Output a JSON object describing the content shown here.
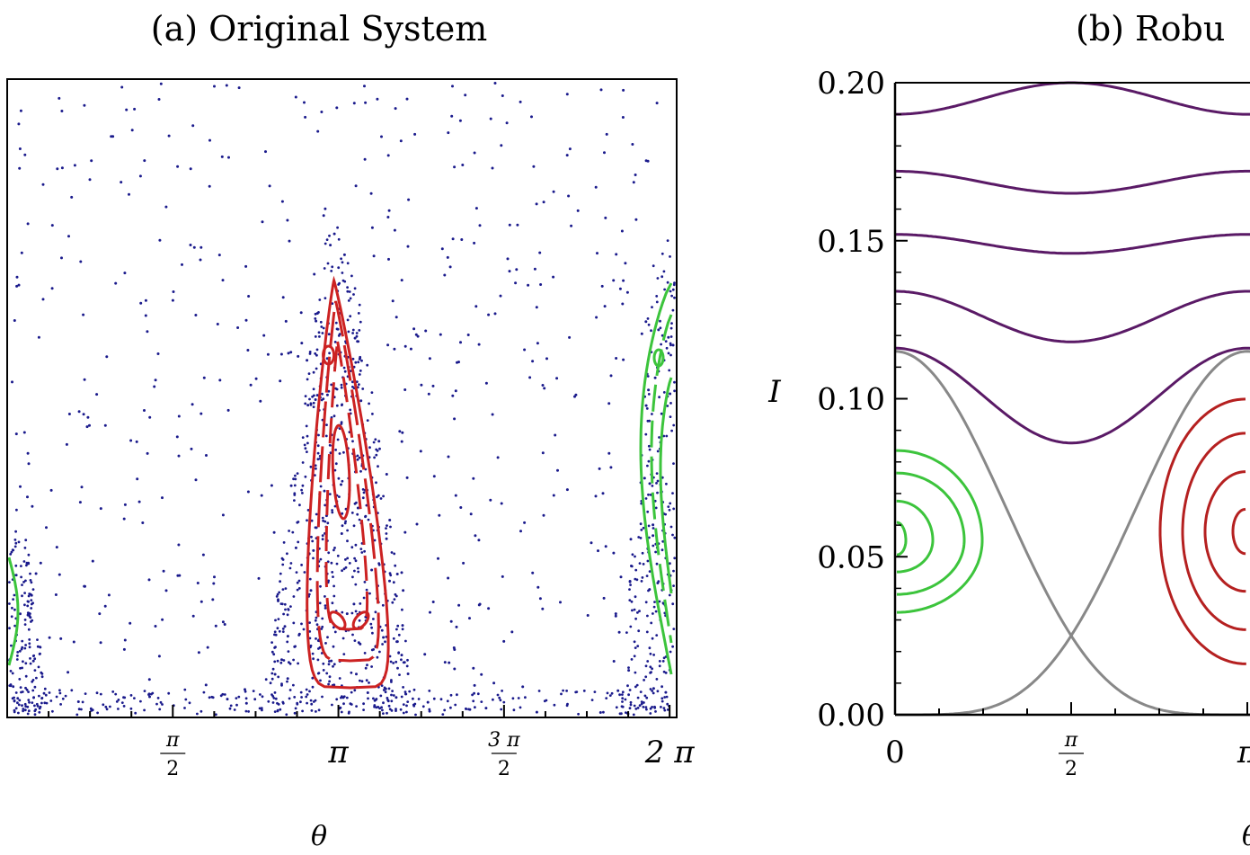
{
  "chart_data": [
    {
      "type": "scatter",
      "panel_title": "(a) Original System",
      "xlabel": "θ",
      "ylabel": "",
      "xlim": [
        0.0,
        6.35
      ],
      "ylim": [
        0.0,
        0.2
      ],
      "x_ticks": [
        {
          "value": 1.5708,
          "num": "π",
          "den": "2"
        },
        {
          "value": 3.1416,
          "label": "π"
        },
        {
          "value": 4.7124,
          "num": "3 π",
          "den": "2"
        },
        {
          "value": 6.2832,
          "label": "2 π"
        }
      ],
      "y_ticks": [],
      "grid": false,
      "colors": {
        "chaos": "#1a1a8c",
        "red_island": "#cc2222",
        "green_island": "#3cc43c"
      },
      "series": [
        {
          "role": "chaotic sea",
          "style": "dots"
        },
        {
          "role": "island at π",
          "style": "closed curves",
          "center": [
            3.14,
            0.08
          ]
        },
        {
          "role": "island at 0 / 2π",
          "style": "closed curves",
          "center": [
            6.28,
            0.08
          ]
        }
      ]
    },
    {
      "type": "line",
      "panel_title": "(b) Robu",
      "xlabel": "θ",
      "ylabel": "I",
      "xlim": [
        0.0,
        3.2
      ],
      "ylim": [
        0.0,
        0.2
      ],
      "x_ticks": [
        {
          "value": 0,
          "label": "0"
        },
        {
          "value": 1.5708,
          "num": "π",
          "den": "2"
        },
        {
          "value": 3.1416,
          "label": "π"
        }
      ],
      "y_ticks": [
        {
          "value": 0.0,
          "label": "0.00"
        },
        {
          "value": 0.05,
          "label": "0.05"
        },
        {
          "value": 0.1,
          "label": "0.10"
        },
        {
          "value": 0.15,
          "label": "0.15"
        },
        {
          "value": 0.2,
          "label": "0.20"
        }
      ],
      "grid": false,
      "colors": {
        "rotation": "#5a1a66",
        "separatrix": "#888888",
        "green": "#3cc43c",
        "red": "#b52020"
      },
      "rotation_curves": [
        {
          "I_at_0": 0.19,
          "I_at_pi_over_2": 0.2
        },
        {
          "I_at_0": 0.172,
          "I_at_pi_over_2": 0.165
        },
        {
          "I_at_0": 0.152,
          "I_at_pi_over_2": 0.146
        },
        {
          "I_at_0": 0.134,
          "I_at_pi_over_2": 0.118
        },
        {
          "I_at_0": 0.116,
          "I_at_pi_over_2": 0.086
        }
      ],
      "separatrices": [
        {
          "I_at_0": 0.115,
          "I_at_pi": 0.0
        },
        {
          "I_at_0": 0.0,
          "I_at_pi": 0.115
        }
      ],
      "island_centers": [
        {
          "theta": 0.0,
          "I": 0.058,
          "color": "green"
        },
        {
          "theta": 3.1416,
          "I": 0.058,
          "color": "red"
        }
      ]
    }
  ]
}
